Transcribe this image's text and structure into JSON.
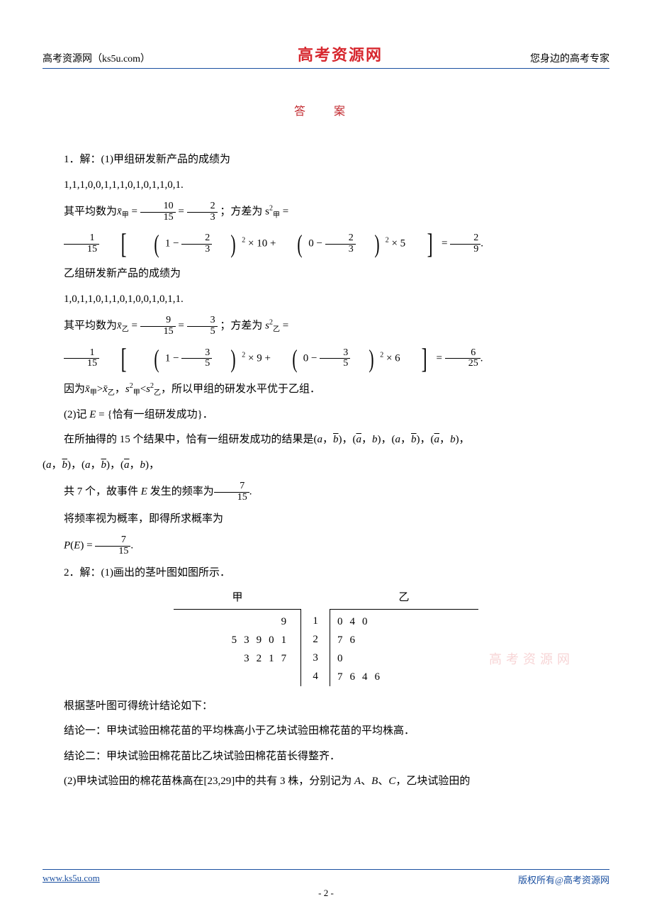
{
  "header": {
    "left": "高考资源网（ks5u.com）",
    "center": "高考资源网",
    "right": "您身边的高考专家"
  },
  "title": "答 案",
  "watermark": "高考资源网",
  "q1": {
    "line1": "1．解：(1)甲组研发新产品的成绩为",
    "seq_jia": "1,1,1,0,0,1,1,1,0,1,0,1,1,0,1.",
    "mean_jia_prefix": "其平均数为x̄",
    "mean_jia_sub": "甲",
    "mean_jia_eq": " = ",
    "mean_jia_frac1_num": "10",
    "mean_jia_frac1_den": "15",
    "mean_jia_frac2_num": "2",
    "mean_jia_frac2_den": "3",
    "var_jia_label": "；方差为 s",
    "var_jia_sub": "甲",
    "var_jia_sup": "2",
    "var_jia_eq": " =",
    "big1_leading_num": "1",
    "big1_leading_den": "15",
    "big1_t1_num": "2",
    "big1_t1_den": "3",
    "big1_t1_mult": " × 10 + ",
    "big1_t2_num": "2",
    "big1_t2_den": "3",
    "big1_t2_mult": " × 5",
    "big1_res_num": "2",
    "big1_res_den": "9",
    "line_yi_intro": "乙组研发新产品的成绩为",
    "seq_yi": "1,0,1,1,0,1,1,0,1,0,0,1,0,1,1.",
    "mean_yi_sub": "乙",
    "mean_yi_frac1_num": "9",
    "mean_yi_frac1_den": "15",
    "mean_yi_frac2_num": "3",
    "mean_yi_frac2_den": "5",
    "var_yi_sub": "乙",
    "big2_leading_num": "1",
    "big2_leading_den": "15",
    "big2_t1_num": "3",
    "big2_t1_den": "5",
    "big2_t1_mult": " × 9 + ",
    "big2_t2_num": "3",
    "big2_t2_den": "5",
    "big2_t2_mult": " × 6",
    "big2_res_num": "6",
    "big2_res_den": "25",
    "compare": "因为x̄甲>x̄乙，s甲²<s乙²，所以甲组的研发水平优于乙组．",
    "part2_a": "(2)记 E = {恰有一组研发成功}．",
    "part2_b": "在所抽得的 15 个结果中，恰有一组研发成功的结果是(",
    "tuple_tail": "",
    "part2_c": "共 7 个，故事件 E 发生的频率为",
    "freq_num": "7",
    "freq_den": "15",
    "part2_d": "将频率视为概率，即得所求概率为",
    "pe_label": "P(E) = ",
    "pe_num": "7",
    "pe_den": "15"
  },
  "q2": {
    "line1": "2．解：(1)画出的茎叶图如图所示．",
    "head_left": "甲",
    "head_right": "乙",
    "rows": {
      "r1": {
        "left": "9",
        "stem": "1",
        "right": "040"
      },
      "r2": {
        "left": "53901",
        "stem": "2",
        "right": "76"
      },
      "r3": {
        "left": "3217",
        "stem": "3",
        "right": "0"
      },
      "r4": {
        "left": "",
        "stem": "4",
        "right": "7646"
      }
    },
    "concl_intro": "根据茎叶图可得统计结论如下：",
    "concl1": "结论一：甲块试验田棉花苗的平均株高小于乙块试验田棉花苗的平均株高．",
    "concl2": "结论二：甲块试验田棉花苗比乙块试验田棉花苗长得整齐．",
    "part2": "(2)甲块试验田的棉花苗株高在[23,29]中的共有 3 株，分别记为 A、B、C，乙块试验田的"
  },
  "footer": {
    "left": "www.ks5u.com",
    "right": "版权所有@高考资源网",
    "page": "- 2 -"
  },
  "colors": {
    "rule": "#1a4fa0",
    "brand_red": "#d7282f",
    "title_red": "#c1272d"
  }
}
